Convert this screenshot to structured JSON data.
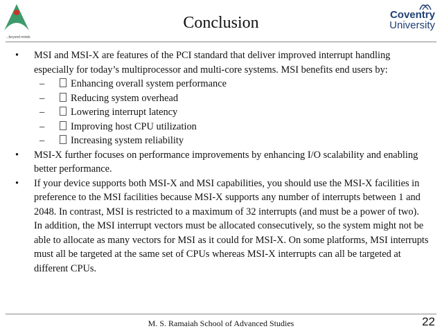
{
  "header": {
    "title": "Conclusion",
    "left_logo_tag": "...beyond minds",
    "right_logo_line1": "Coventry",
    "right_logo_line2": "University"
  },
  "bullets": [
    {
      "text": "MSI and MSI-X are features of the PCI standard that deliver improved interrupt handling especially for today’s multiprocessor and multi-core systems. MSI benefits end users by:",
      "sub": [
        "Enhancing overall system performance",
        "Reducing system overhead",
        "Lowering interrupt latency",
        "Improving host CPU utilization",
        "Increasing system reliability"
      ]
    },
    {
      "text": "MSI-X further focuses on performance improvements by enhancing I/O scalability and enabling better performance."
    },
    {
      "text": "If your device supports both MSI-X and MSI capabilities, you should use the MSI-X facilities in preference to the MSI facilities because MSI-X supports any number of interrupts between 1 and 2048. In contrast, MSI is restricted to a maximum of 32 interrupts (and must be a power of two).  In addition, the MSI interrupt vectors must be allocated consecutively, so the system might not be able to allocate as many vectors for MSI as it could for MSI-X.  On some platforms, MSI interrupts must all be targeted at the same set of CPUs whereas MSI-X interrupts can all be targeted at different CPUs."
    }
  ],
  "symbols": {
    "bullet": "•",
    "dash": "–"
  },
  "footer": {
    "text": "M. S. Ramaiah School of Advanced Studies",
    "page": "22"
  },
  "colors": {
    "logo_green": "#3d9a6a",
    "logo_red": "#c8332a",
    "coventry_blue": "#1f3f73"
  }
}
